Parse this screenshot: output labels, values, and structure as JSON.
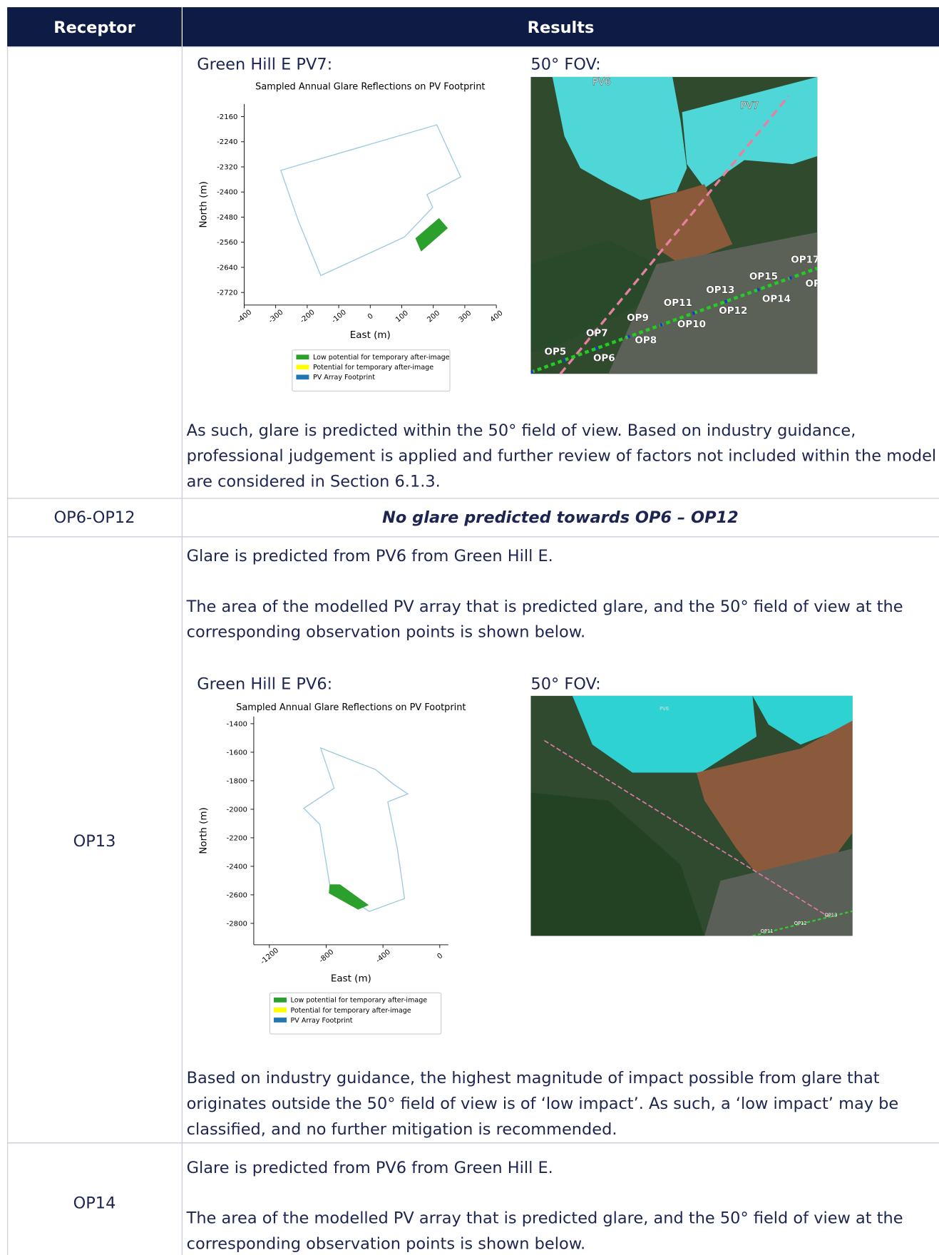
{
  "table": {
    "headers": [
      "Receptor",
      "Results"
    ],
    "rows": [
      {
        "results": {
          "figures": [
            {
              "heading": "Green Hill E PV7:",
              "chart": {
                "type": "polygon",
                "title": "Sampled Annual Glare Reflections on PV Footprint",
                "xlabel": "East (m)",
                "ylabel": "North (m)",
                "xlim": [
                  -400,
                  400
                ],
                "ylim": [
                  -2760,
                  -2120
                ],
                "xticks": [
                  -400,
                  -300,
                  -200,
                  -100,
                  0,
                  100,
                  200,
                  300,
                  400
                ],
                "yticks": [
                  -2160,
                  -2240,
                  -2320,
                  -2400,
                  -2480,
                  -2560,
                  -2640,
                  -2720
                ],
                "footprint": {
                  "color": "#9ecae1",
                  "x": [
                    -284,
                    211,
                    287,
                    180,
                    198,
                    109,
                    71,
                    -157,
                    -228
                  ],
                  "y": [
                    -2331,
                    -2186,
                    -2352,
                    -2408,
                    -2449,
                    -2543,
                    -2561,
                    -2666,
                    -2492
                  ]
                },
                "glare": {
                  "color": "#2ca02c",
                  "x": [
                    145,
                    218,
                    244,
                    162
                  ],
                  "y": [
                    -2548,
                    -2485,
                    -2515,
                    -2587
                  ]
                },
                "legend": [
                  {
                    "label": "Low potential for temporary after-image",
                    "color": "#2ca02c"
                  },
                  {
                    "label": "Potential for temporary after-image",
                    "color": "#ffff00"
                  },
                  {
                    "label": "PV Array Footprint",
                    "color": "#1f77b4"
                  }
                ]
              }
            },
            {
              "heading": "50° FOV:",
              "map_labels": [
                "PV6",
                "PV7",
                "OP17",
                "OP15",
                "OP13",
                "OP11",
                "OP14",
                "OP12",
                "OP10",
                "OP9",
                "OP8",
                "OP7",
                "OP6",
                "OP5",
                "OP"
              ]
            }
          ],
          "paragraphs": [
            "As such, glare is predicted within the 50° field of view. Based on industry guidance, professional judgement is applied and further review of factors not included within the model are considered in Section 6.1.3."
          ]
        }
      },
      {
        "receptor": "OP6-OP12",
        "results": {
          "paragraphs": [
            "No glare predicted towards OP6 – OP12"
          ]
        }
      },
      {
        "receptor": "OP13",
        "results": {
          "paragraphs": [
            "Glare is predicted from PV6 from Green Hill E.",
            "The area of the modelled PV array that is predicted glare, and the 50° field of view at the corresponding observation points is shown below."
          ],
          "figures": [
            {
              "heading": "Green Hill E PV6:",
              "chart": {
                "type": "polygon",
                "title": "Sampled Annual Glare Reflections on PV Footprint",
                "xlabel": "East (m)",
                "ylabel": "North (m)",
                "xlim": [
                  -1310,
                  60
                ],
                "ylim": [
                  -2950,
                  -1350
                ],
                "xticks": [
                  -1200,
                  -800,
                  -400,
                  0
                ],
                "yticks": [
                  -1400,
                  -1600,
                  -1800,
                  -2000,
                  -2200,
                  -2400,
                  -2600,
                  -2800
                ],
                "footprint": {
                  "color": "#9ecae1",
                  "x": [
                    -839,
                    -451,
                    -327,
                    -225,
                    -366,
                    -299,
                    -248,
                    -496,
                    -772,
                    -845,
                    -958,
                    -744
                  ],
                  "y": [
                    -1570,
                    -1722,
                    -1824,
                    -1892,
                    -1948,
                    -2276,
                    -2626,
                    -2716,
                    -2547,
                    -2106,
                    -1993,
                    -1852
                  ]
                },
                "glare": {
                  "color": "#2ca02c",
                  "x": [
                    -772,
                    -704,
                    -507,
                    -575,
                    -778
                  ],
                  "y": [
                    -2530,
                    -2530,
                    -2671,
                    -2700,
                    -2587
                  ]
                },
                "legend": [
                  {
                    "label": "Low potential for temporary after-image",
                    "color": "#2ca02c"
                  },
                  {
                    "label": "Potential for temporary after-image",
                    "color": "#ffff00"
                  },
                  {
                    "label": "PV Array Footprint",
                    "color": "#1f77b4"
                  }
                ]
              }
            },
            {
              "heading": "50° FOV:",
              "map_labels": [
                "PV6",
                "OP13",
                "OP12",
                "OP11"
              ]
            }
          ],
          "closing": [
            "Based on industry guidance, the highest magnitude of impact possible from glare that originates outside the 50° field of view is of ‘low impact’. As such, a ‘low impact’ may be classified, and no further mitigation is recommended."
          ]
        }
      },
      {
        "receptor": "OP14",
        "results": {
          "paragraphs": [
            "Glare is predicted from PV6 from Green Hill E.",
            "The area of the modelled PV array that is predicted glare, and the 50° field of view at the corresponding observation points is shown below."
          ]
        }
      }
    ]
  }
}
